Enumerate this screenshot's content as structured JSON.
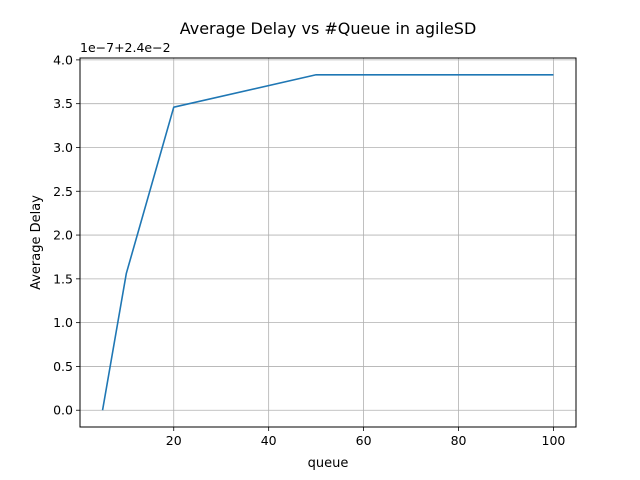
{
  "chart_data": {
    "type": "line",
    "title": "Average Delay vs #Queue in agileSD",
    "xlabel": "queue",
    "ylabel": "Average Delay",
    "y_offset_label": "1e−7+2.4e−2",
    "grid": true,
    "xlim": [
      0.25,
      104.75
    ],
    "ylim": [
      -0.1915,
      4.0215
    ],
    "x_ticks": [
      20,
      40,
      60,
      80,
      100
    ],
    "x_tick_labels": [
      "20",
      "40",
      "60",
      "80",
      "100"
    ],
    "y_ticks": [
      0.0,
      0.5,
      1.0,
      1.5,
      2.0,
      2.5,
      3.0,
      3.5,
      4.0
    ],
    "y_tick_labels": [
      "0.0",
      "0.5",
      "1.0",
      "1.5",
      "2.0",
      "2.5",
      "3.0",
      "3.5",
      "4.0"
    ],
    "series": [
      {
        "color": "#1f77b4",
        "x": [
          5,
          10,
          20,
          50,
          100
        ],
        "y": [
          0.0,
          1.56,
          3.46,
          3.83,
          3.83
        ]
      }
    ]
  }
}
